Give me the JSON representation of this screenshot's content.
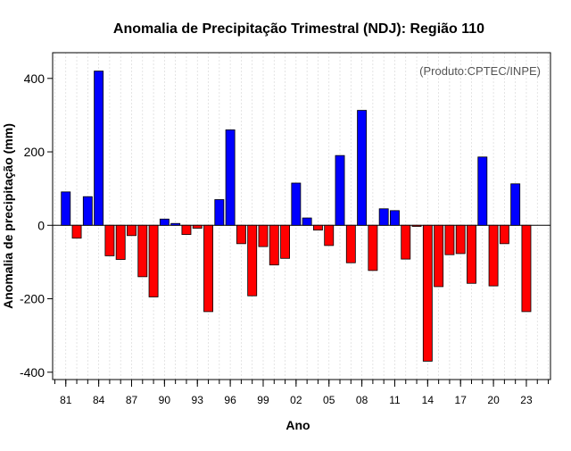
{
  "chart_data": {
    "type": "bar",
    "title": "Anomalia de Precipitação Trimestral (NDJ): Região 110",
    "xlabel": "Ano",
    "ylabel": "Anomalia de precipitação (mm)",
    "annotation": "(Produto:CPTEC/INPE)",
    "ylim": [
      -420,
      470
    ],
    "yticks": [
      -400,
      -200,
      0,
      200,
      400
    ],
    "xlim": [
      1979.8,
      2025.2
    ],
    "xticks": [
      1981,
      1984,
      1987,
      1990,
      1993,
      1996,
      1999,
      2002,
      2005,
      2008,
      2011,
      2014,
      2017,
      2020,
      2023
    ],
    "xtick_labels": [
      "81",
      "84",
      "87",
      "90",
      "93",
      "96",
      "99",
      "02",
      "05",
      "08",
      "11",
      "14",
      "17",
      "20",
      "23"
    ],
    "grid": "vertical dotted lines at each year",
    "positive_color": "#0000ff",
    "negative_color": "#ff0000",
    "years": [
      1981,
      1982,
      1983,
      1984,
      1985,
      1986,
      1987,
      1988,
      1989,
      1990,
      1991,
      1992,
      1993,
      1994,
      1995,
      1996,
      1997,
      1998,
      1999,
      2000,
      2001,
      2002,
      2003,
      2004,
      2005,
      2006,
      2007,
      2008,
      2009,
      2010,
      2011,
      2012,
      2013,
      2014,
      2015,
      2016,
      2017,
      2018,
      2019,
      2020,
      2021,
      2022,
      2023
    ],
    "values": [
      91,
      -35,
      78,
      420,
      -83,
      -93,
      -28,
      -140,
      -195,
      17,
      5,
      -25,
      -8,
      -235,
      70,
      260,
      -50,
      -192,
      -58,
      -108,
      -90,
      115,
      20,
      -13,
      -55,
      190,
      -102,
      313,
      -123,
      45,
      40,
      -92,
      -3,
      -370,
      -167,
      -80,
      -77,
      -158,
      186,
      -165,
      -50,
      113,
      -235
    ]
  }
}
